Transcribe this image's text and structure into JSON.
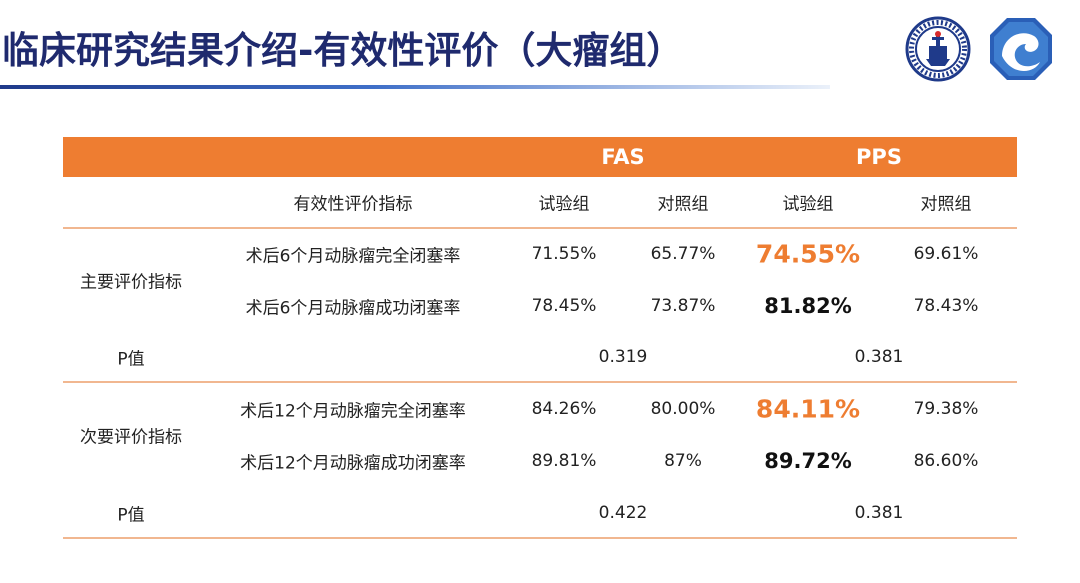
{
  "page": {
    "title": "临床研究结果介绍-有效性评价（大瘤组）",
    "logos": {
      "hospital": "hospital-seal-logo",
      "brand": "blue-swirl-logo"
    },
    "accent_color": "#ee7d31",
    "title_color": "#1f2a6e"
  },
  "table": {
    "group_headers": {
      "fas": "FAS",
      "pps": "PPS"
    },
    "col_headers": {
      "indicator": "有效性评价指标",
      "fas_trial": "试验组",
      "fas_control": "对照组",
      "pps_trial": "试验组",
      "pps_control": "对照组"
    },
    "sections": [
      {
        "label": "主要评价指标",
        "rows": [
          {
            "indicator": "术后6个月动脉瘤完全闭塞率",
            "fas_trial": "71.55%",
            "fas_control": "65.77%",
            "pps_trial": "74.55%",
            "pps_control": "69.61%"
          },
          {
            "indicator": "术后6个月动脉瘤成功闭塞率",
            "fas_trial": "78.45%",
            "fas_control": "73.87%",
            "pps_trial": "81.82%",
            "pps_control": "78.43%"
          }
        ],
        "p_label": "P值",
        "p_fas": "0.319",
        "p_pps": "0.381"
      },
      {
        "label": "次要评价指标",
        "rows": [
          {
            "indicator": "术后12个月动脉瘤完全闭塞率",
            "fas_trial": "84.26%",
            "fas_control": "80.00%",
            "pps_trial": "84.11%",
            "pps_control": "79.38%"
          },
          {
            "indicator": "术后12个月动脉瘤成功闭塞率",
            "fas_trial": "89.81%",
            "fas_control": "87%",
            "pps_trial": "89.72%",
            "pps_control": "86.60%"
          }
        ],
        "p_label": "P值",
        "p_fas": "0.422",
        "p_pps": "0.381"
      }
    ]
  }
}
